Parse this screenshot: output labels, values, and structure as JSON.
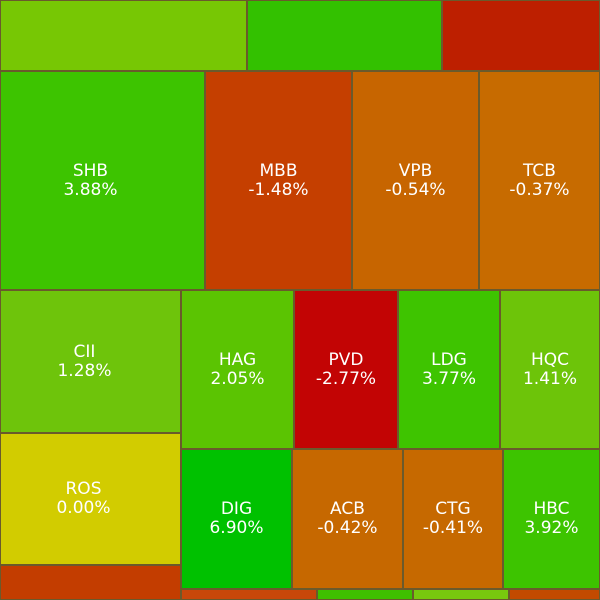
{
  "chart_data": {
    "type": "treemap",
    "tiles": [
      {
        "symbol": "",
        "change": "",
        "change_value": null,
        "color": "#77c704"
      },
      {
        "symbol": "",
        "change": "",
        "change_value": null,
        "color": "#33c100"
      },
      {
        "symbol": "",
        "change": "",
        "change_value": null,
        "color": "#bd1f00"
      },
      {
        "symbol": "SHB",
        "change": "3.88%",
        "change_value": 3.88,
        "color": "#3dc400"
      },
      {
        "symbol": "MBB",
        "change": "-1.48%",
        "change_value": -1.48,
        "color": "#c53f00"
      },
      {
        "symbol": "VPB",
        "change": "-0.54%",
        "change_value": -0.54,
        "color": "#c76500"
      },
      {
        "symbol": "TCB",
        "change": "-0.37%",
        "change_value": -0.37,
        "color": "#c76b00"
      },
      {
        "symbol": "CII",
        "change": "1.28%",
        "change_value": 1.28,
        "color": "#6ec40b"
      },
      {
        "symbol": "HAG",
        "change": "2.05%",
        "change_value": 2.05,
        "color": "#5bc402"
      },
      {
        "symbol": "PVD",
        "change": "-2.77%",
        "change_value": -2.77,
        "color": "#c20404"
      },
      {
        "symbol": "LDG",
        "change": "3.77%",
        "change_value": 3.77,
        "color": "#3ec400"
      },
      {
        "symbol": "HQC",
        "change": "1.41%",
        "change_value": 1.41,
        "color": "#6dc409"
      },
      {
        "symbol": "ROS",
        "change": "0.00%",
        "change_value": 0.0,
        "color": "#d2cc00"
      },
      {
        "symbol": "DIG",
        "change": "6.90%",
        "change_value": 6.9,
        "color": "#00c100"
      },
      {
        "symbol": "ACB",
        "change": "-0.42%",
        "change_value": -0.42,
        "color": "#c66800"
      },
      {
        "symbol": "CTG",
        "change": "-0.41%",
        "change_value": -0.41,
        "color": "#c66900"
      },
      {
        "symbol": "HBC",
        "change": "3.92%",
        "change_value": 3.92,
        "color": "#3dc400"
      },
      {
        "symbol": "",
        "change": "",
        "change_value": null,
        "color": "#c33d00"
      },
      {
        "symbol": "",
        "change": "",
        "change_value": null,
        "color": "#c8470a"
      },
      {
        "symbol": "",
        "change": "",
        "change_value": null,
        "color": "#3fc000"
      },
      {
        "symbol": "",
        "change": "",
        "change_value": null,
        "color": "#78c80e"
      },
      {
        "symbol": "",
        "change": "",
        "change_value": null,
        "color": "#c24a00"
      }
    ]
  }
}
